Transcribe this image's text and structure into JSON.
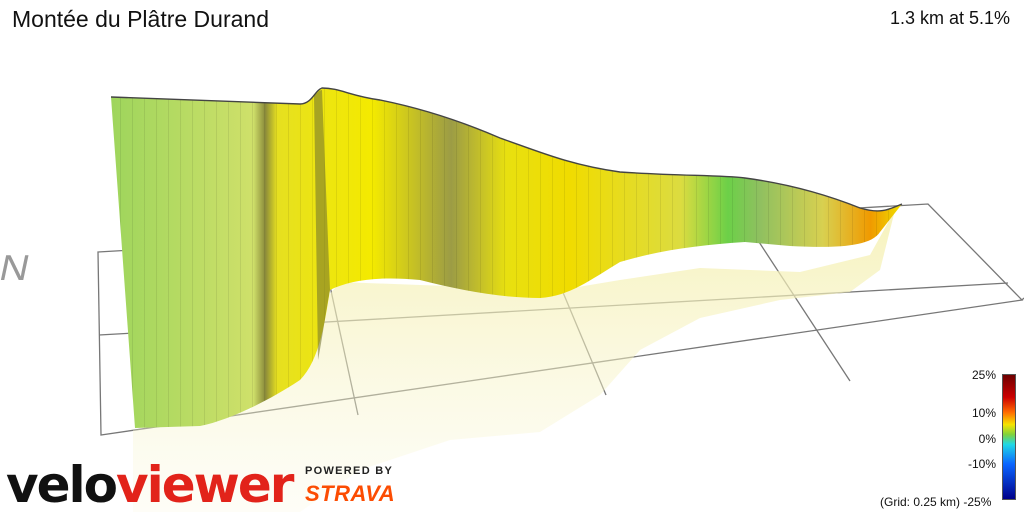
{
  "header": {
    "title": "Montée du Plâtre Durand",
    "stats": "1.3 km at 5.1%"
  },
  "compass": {
    "label": "N"
  },
  "branding": {
    "logo_part1": "velo",
    "logo_part2": "viewer",
    "powered_by": "POWERED BY",
    "partner": "STRAVA"
  },
  "legend": {
    "ticks": [
      "25%",
      "10%",
      "0%",
      "-10%",
      "-25%"
    ],
    "grid_note": "(Grid: 0.25 km)",
    "gradient_colors": [
      "#6e0000",
      "#cc0000",
      "#ff6a00",
      "#f5e400",
      "#7fd23c",
      "#35c238",
      "#1fd8e6",
      "#0a64ff",
      "#00008a"
    ]
  },
  "profile": {
    "colors": {
      "grid": "#777777",
      "outline": "#444444",
      "green": "#8fc85a",
      "yellow": "#f0e000",
      "olive": "#a8a845",
      "orange": "#f0a000"
    }
  }
}
